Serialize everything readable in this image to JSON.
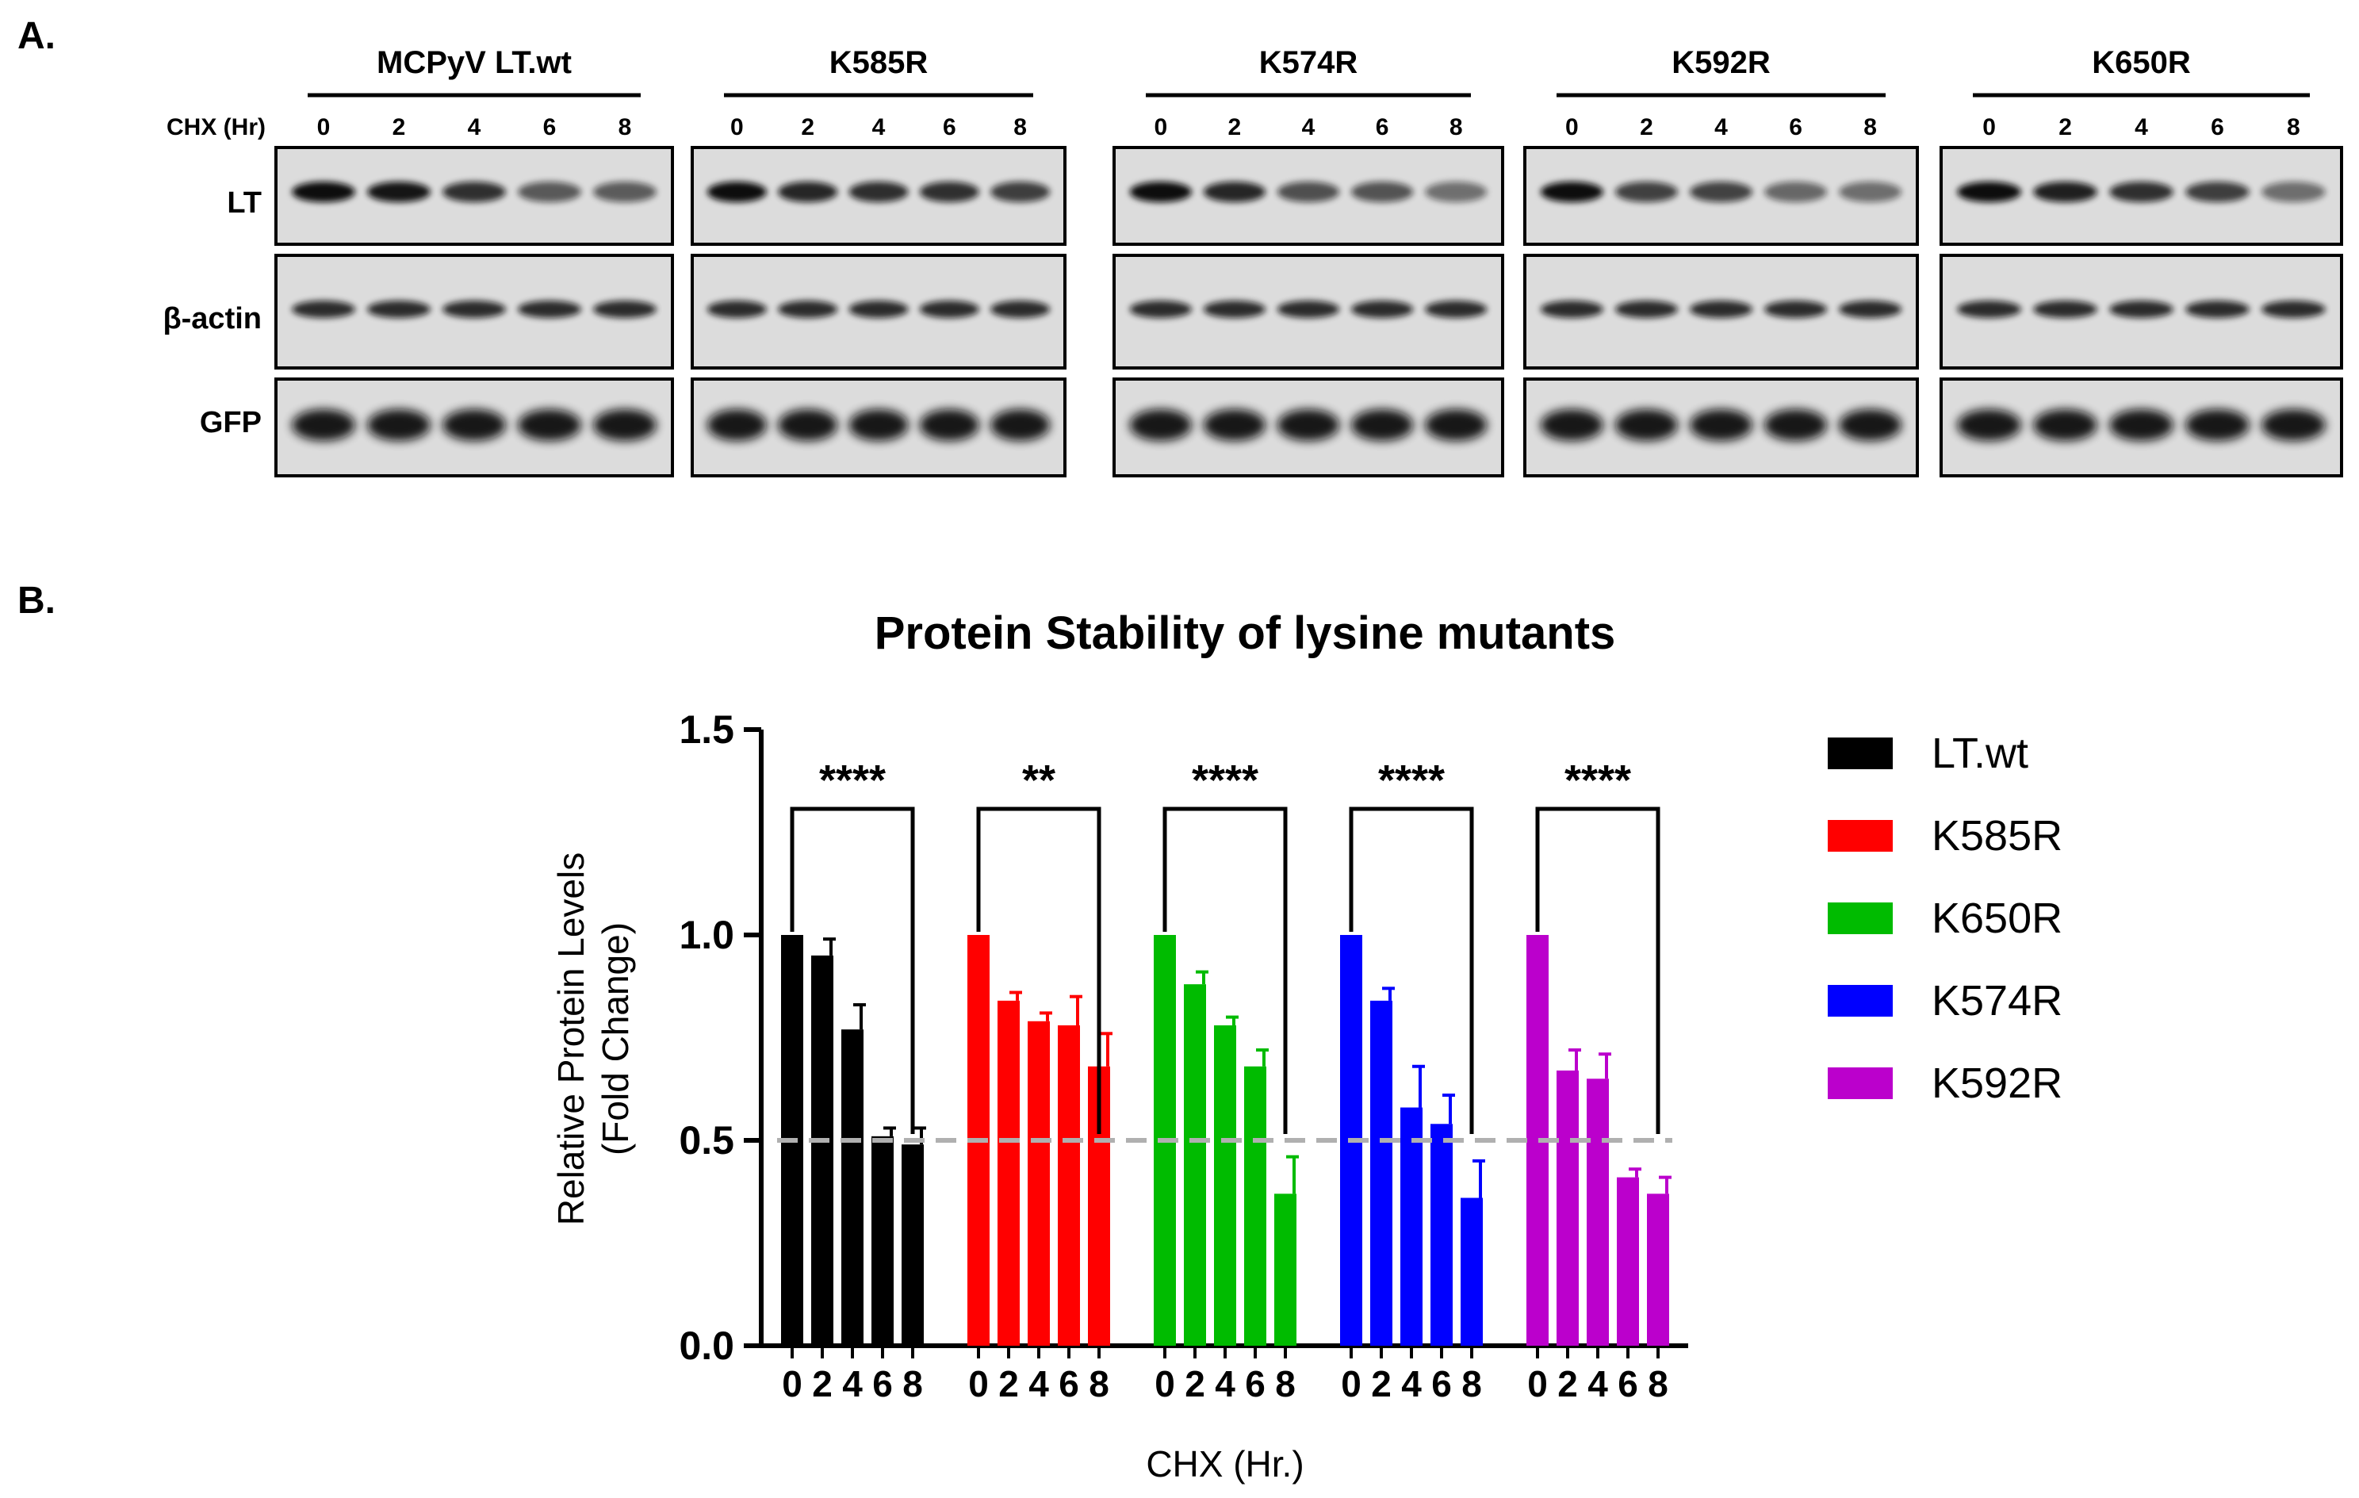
{
  "panels": {
    "a_label": "A.",
    "b_label": "B."
  },
  "blot": {
    "chx_label": "CHX (Hr)",
    "row_labels": [
      "LT",
      "β-actin",
      "GFP"
    ],
    "timepoints": [
      "0",
      "2",
      "4",
      "6",
      "8"
    ],
    "groups": [
      {
        "name": "MCPyV LT.wt"
      },
      {
        "name": "K585R"
      },
      {
        "name": "K574R"
      },
      {
        "name": "K592R"
      },
      {
        "name": "K650R"
      }
    ]
  },
  "chart_data": {
    "type": "bar",
    "title": "Protein Stability of lysine mutants",
    "ylabel": "Relative Protein Levels (Fold Change)",
    "ylabel_lines": [
      "Relative Protein Levels",
      "(Fold Change)"
    ],
    "xlabel": "CHX (Hr.)",
    "ylim": [
      0,
      1.5
    ],
    "yticks": [
      "0.0",
      "0.5",
      "1.0",
      "1.5"
    ],
    "reference_line": 0.5,
    "timepoints": [
      "0",
      "2",
      "4",
      "6",
      "8"
    ],
    "legend_position": "right",
    "series": [
      {
        "name": "LT.wt",
        "color": "#000000",
        "values": [
          1.0,
          0.95,
          0.77,
          0.51,
          0.49
        ],
        "errors": [
          0.0,
          0.04,
          0.06,
          0.02,
          0.04
        ],
        "significance": "****"
      },
      {
        "name": "K585R",
        "color": "#ff0000",
        "values": [
          1.0,
          0.84,
          0.79,
          0.78,
          0.68
        ],
        "errors": [
          0.0,
          0.02,
          0.02,
          0.07,
          0.08
        ],
        "significance": "**"
      },
      {
        "name": "K650R",
        "color": "#00bb00",
        "values": [
          1.0,
          0.88,
          0.78,
          0.68,
          0.37
        ],
        "errors": [
          0.0,
          0.03,
          0.02,
          0.04,
          0.09
        ],
        "significance": "****"
      },
      {
        "name": "K574R",
        "color": "#0000ff",
        "values": [
          1.0,
          0.84,
          0.58,
          0.54,
          0.36
        ],
        "errors": [
          0.0,
          0.03,
          0.1,
          0.07,
          0.09
        ],
        "significance": "****"
      },
      {
        "name": "K592R",
        "color": "#bb00cc",
        "values": [
          1.0,
          0.67,
          0.65,
          0.41,
          0.37
        ],
        "errors": [
          0.0,
          0.05,
          0.06,
          0.02,
          0.04
        ],
        "significance": "****"
      }
    ]
  }
}
